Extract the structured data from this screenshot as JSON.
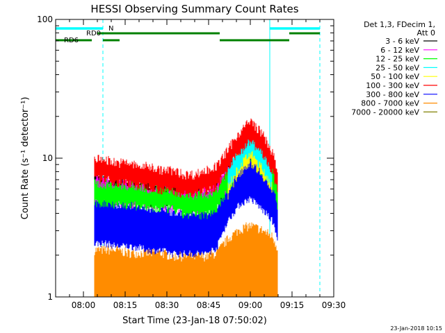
{
  "chart_data": {
    "type": "line",
    "title": "HESSI Observing Summary Count Rates",
    "xlabel": "Start Time (23-Jan-18 07:50:02)",
    "ylabel": "Count Rate (s⁻¹ detector⁻¹)",
    "yscale": "log",
    "ylim": [
      1,
      100
    ],
    "xlim": [
      "07:50",
      "09:30"
    ],
    "x_ticks": [
      "08:00",
      "08:15",
      "08:30",
      "08:45",
      "09:00",
      "09:15",
      "09:30"
    ],
    "y_ticks": [
      "1",
      "10",
      "100"
    ],
    "legend_header": [
      "Det 1,3, FDecim 1,",
      "Att 0"
    ],
    "legend_position": "right",
    "timestamp": "23-Jan-2018 10:15",
    "series": [
      {
        "name": "3 - 6 keV",
        "color": "#000000",
        "x": [
          "08:04",
          "08:08",
          "08:12",
          "08:16",
          "08:20",
          "08:24",
          "08:28",
          "08:32",
          "08:36",
          "08:40",
          "08:44",
          "08:48",
          "08:52",
          "08:56",
          "09:00",
          "09:04",
          "09:08",
          "09:10"
        ],
        "values": [
          7,
          7,
          6.5,
          6.5,
          6,
          6,
          6,
          6,
          5.5,
          5.5,
          5.5,
          6,
          8,
          11,
          13,
          11,
          9,
          6
        ]
      },
      {
        "name": "6 - 12 keV",
        "color": "#ff00ff",
        "x": [
          "08:04",
          "08:08",
          "08:12",
          "08:16",
          "08:20",
          "08:24",
          "08:28",
          "08:32",
          "08:36",
          "08:40",
          "08:44",
          "08:48",
          "08:52",
          "08:56",
          "09:00",
          "09:04",
          "09:08",
          "09:10"
        ],
        "values": [
          6.5,
          6.5,
          6,
          6,
          6,
          5.8,
          5.8,
          5.5,
          5.5,
          5.5,
          5.5,
          6,
          8,
          11,
          13,
          11,
          8.5,
          6
        ]
      },
      {
        "name": "12 - 25 keV",
        "color": "#00ff00",
        "x": [
          "08:04",
          "08:08",
          "08:12",
          "08:16",
          "08:20",
          "08:24",
          "08:28",
          "08:32",
          "08:36",
          "08:40",
          "08:44",
          "08:48",
          "08:52",
          "08:56",
          "09:00",
          "09:04",
          "09:08",
          "09:10"
        ],
        "values": [
          6,
          6,
          6,
          5.8,
          5.8,
          5.5,
          5.5,
          5.5,
          5,
          5,
          5,
          5.5,
          7.5,
          10.5,
          13,
          10,
          8,
          5.5
        ]
      },
      {
        "name": "25 - 50 keV",
        "color": "#00ffff",
        "x": [
          "08:52",
          "08:56",
          "09:00",
          "09:04",
          "09:08"
        ],
        "values": [
          8,
          11,
          14,
          11,
          8
        ]
      },
      {
        "name": "50 - 100 keV",
        "color": "#ffff00",
        "x": [
          "08:52",
          "08:56",
          "09:00",
          "09:04",
          "09:08"
        ],
        "values": [
          7,
          10,
          12,
          10,
          7
        ]
      },
      {
        "name": "100 - 300 keV",
        "color": "#ff0000",
        "x": [
          "08:04",
          "08:08",
          "08:12",
          "08:16",
          "08:20",
          "08:24",
          "08:28",
          "08:32",
          "08:36",
          "08:40",
          "08:44",
          "08:48",
          "08:52",
          "08:56",
          "09:00",
          "09:04",
          "09:08",
          "09:10"
        ],
        "values": [
          9,
          9,
          8.5,
          8.5,
          8,
          8,
          7.5,
          7.5,
          7,
          7,
          7.5,
          8,
          10.5,
          14,
          17,
          14,
          10,
          7
        ]
      },
      {
        "name": "300 - 800 keV",
        "color": "#0000ff",
        "x": [
          "08:04",
          "08:08",
          "08:12",
          "08:16",
          "08:20",
          "08:24",
          "08:28",
          "08:32",
          "08:36",
          "08:40",
          "08:44",
          "08:48",
          "08:52",
          "08:56",
          "09:00",
          "09:04",
          "09:08",
          "09:10"
        ],
        "values": [
          4.5,
          4.5,
          4.3,
          4.3,
          4.2,
          4,
          4,
          3.8,
          3.8,
          3.8,
          3.8,
          4.2,
          6.5,
          8.5,
          9.5,
          8,
          6.5,
          4.5
        ]
      },
      {
        "name": "800 - 7000 keV",
        "color": "#ff8c00",
        "x": [
          "08:04",
          "08:08",
          "08:12",
          "08:16",
          "08:20",
          "08:24",
          "08:28",
          "08:32",
          "08:36",
          "08:40",
          "08:44",
          "08:48",
          "08:52",
          "08:56",
          "09:00",
          "09:04",
          "09:08",
          "09:10"
        ],
        "values": [
          2,
          2,
          2,
          1.9,
          1.9,
          1.9,
          1.9,
          1.8,
          1.8,
          1.8,
          1.8,
          1.9,
          2.4,
          2.8,
          3,
          2.8,
          2.5,
          2
        ]
      },
      {
        "name": "7000 - 20000 keV",
        "color": "#808000",
        "x": [],
        "values": []
      }
    ],
    "flags": [
      {
        "name": "N",
        "color": "#00ffff",
        "intervals": [
          [
            "07:50",
            "08:07"
          ],
          [
            "09:07",
            "09:25"
          ]
        ]
      },
      {
        "name": "RD0",
        "color": "#008000",
        "intervals": [
          [
            "08:05",
            "08:49"
          ],
          [
            "09:14",
            "09:25"
          ]
        ]
      },
      {
        "name": "RD6",
        "color": "#008000",
        "intervals": [
          [
            "07:50",
            "08:03"
          ],
          [
            "08:07",
            "08:13"
          ],
          [
            "08:49",
            "09:14"
          ]
        ]
      }
    ],
    "vertical_markers": [
      {
        "x": "07:50",
        "style": "solid",
        "color": "#00ffff"
      },
      {
        "x": "08:07",
        "style": "dashed",
        "color": "#00ffff"
      },
      {
        "x": "09:07",
        "style": "solid",
        "color": "#00ffff"
      },
      {
        "x": "09:25",
        "style": "dashed",
        "color": "#00ffff"
      }
    ]
  }
}
